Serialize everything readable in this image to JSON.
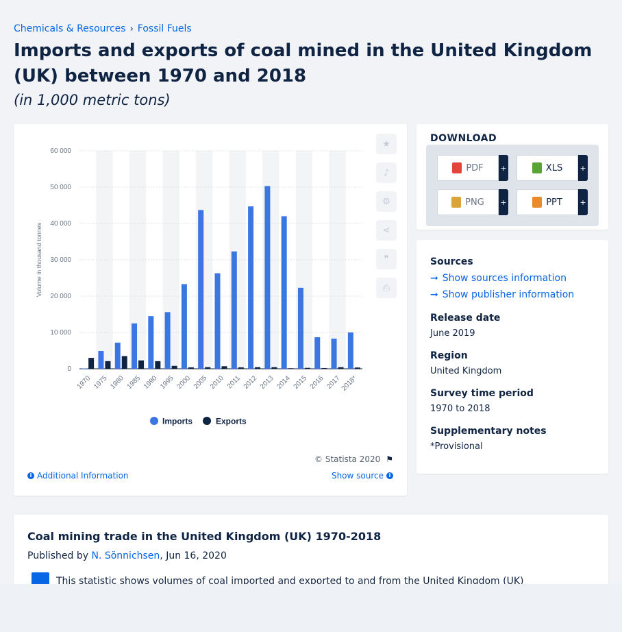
{
  "breadcrumb": [
    "Chemicals & Resources",
    "Fossil Fuels"
  ],
  "title": "Imports and exports of coal mined in the United Kingdom (UK) between 1970 and 2018",
  "subtitle": "(in 1,000 metric tons)",
  "chart_data": {
    "type": "bar",
    "categories": [
      "1970",
      "1975",
      "1980",
      "1985",
      "1990",
      "1995",
      "2000",
      "2005",
      "2010",
      "2011",
      "2012",
      "2013",
      "2014",
      "2015",
      "2016",
      "2017",
      "2018*"
    ],
    "series": [
      {
        "name": "Imports",
        "color": "#3b76e2",
        "values": [
          100,
          4900,
          7200,
          12500,
          14500,
          15600,
          23300,
          43700,
          26300,
          32300,
          44700,
          50300,
          42000,
          22300,
          8700,
          8300,
          10000
        ]
      },
      {
        "name": "Exports",
        "color": "#0f2342",
        "values": [
          3000,
          2100,
          3500,
          2300,
          2100,
          800,
          400,
          450,
          700,
          400,
          450,
          450,
          150,
          250,
          200,
          450,
          350
        ]
      }
    ],
    "ylabel": "Volume in thousand tonnes",
    "ylim": [
      0,
      60000
    ],
    "yticks": [
      "0",
      "10 000",
      "20 000",
      "30 000",
      "40 000",
      "50 000",
      "60 000"
    ],
    "legend": "bottom",
    "grid": true
  },
  "chart_footer": {
    "copyright": "© Statista 2020",
    "additional_info": "Additional Information",
    "show_source": "Show source"
  },
  "download": {
    "title": "DOWNLOAD",
    "buttons": [
      {
        "label": "PDF",
        "icon": "pdf-file-icon",
        "color": "#e2453c"
      },
      {
        "label": "XLS",
        "icon": "xls-file-icon",
        "color": "#5aa335"
      },
      {
        "label": "PNG",
        "icon": "png-file-icon",
        "color": "#d9a53a"
      },
      {
        "label": "PPT",
        "icon": "ppt-file-icon",
        "color": "#e98b2a"
      }
    ],
    "plus": "+"
  },
  "meta": {
    "sources_title": "Sources",
    "show_sources": "Show sources information",
    "show_publisher": "Show publisher information",
    "release_title": "Release date",
    "release_value": "June 2019",
    "region_title": "Region",
    "region_value": "United Kingdom",
    "survey_title": "Survey time period",
    "survey_value": "1970 to 2018",
    "notes_title": "Supplementary notes",
    "notes_value": "*Provisional"
  },
  "description": {
    "title": "Coal mining trade in the United Kingdom (UK) 1970-2018",
    "published_prefix": "Published by",
    "author": "N. Sönnichsen",
    "date": ", Jun 16, 2020",
    "text": "This statistic shows volumes of coal imported and exported to and from the United Kingdom (UK)"
  }
}
